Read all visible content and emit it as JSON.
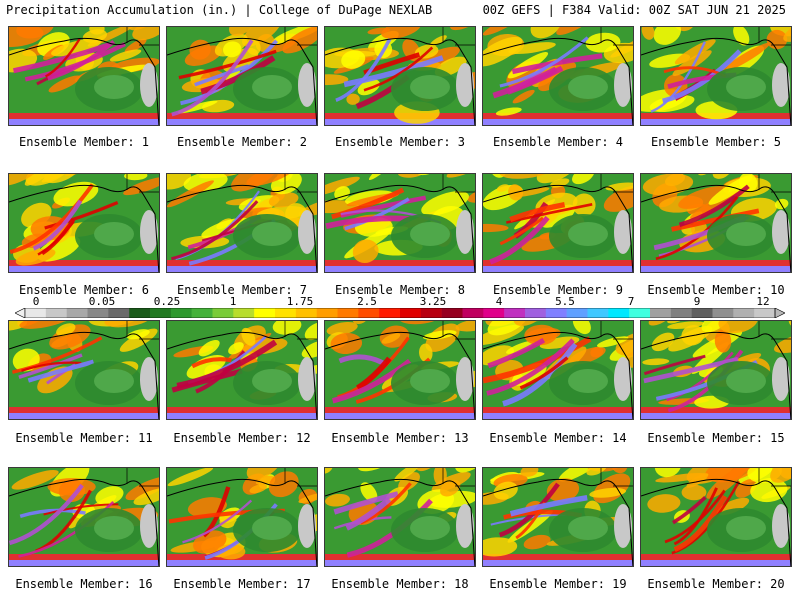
{
  "header": {
    "title_left": "Precipitation Accumulation (in.) | College of DuPage NEXLAB",
    "title_right": "00Z GEFS | F384 Valid: 00Z SAT JUN 21 2025"
  },
  "colorbar": {
    "labels": [
      "0",
      "0.05",
      "0.25",
      "1",
      "1.75",
      "2.5",
      "3.25",
      "4",
      "5.5",
      "7",
      "9",
      "12"
    ],
    "colors": [
      "#e8e8e8",
      "#c8c8c8",
      "#a8a8a8",
      "#888888",
      "#6a6a6a",
      "#1a5a1a",
      "#227a22",
      "#2e992e",
      "#45b23a",
      "#7acc38",
      "#b8dd2c",
      "#ffff00",
      "#ffe100",
      "#ffc000",
      "#ff9d00",
      "#ff7a00",
      "#ff4d00",
      "#ff1a00",
      "#e00000",
      "#b80010",
      "#960020",
      "#c00060",
      "#e0008a",
      "#c030c0",
      "#a060e0",
      "#8080ff",
      "#60a0ff",
      "#40c8ff",
      "#00e8ff",
      "#40ffe0",
      "#a0a0a0",
      "#808080",
      "#606060",
      "#909090",
      "#b0b0b0",
      "#c8c8c8"
    ]
  },
  "members": [
    {
      "label": "Ensemble Member: 1"
    },
    {
      "label": "Ensemble Member: 2"
    },
    {
      "label": "Ensemble Member: 3"
    },
    {
      "label": "Ensemble Member: 4"
    },
    {
      "label": "Ensemble Member: 5"
    },
    {
      "label": "Ensemble Member: 6"
    },
    {
      "label": "Ensemble Member: 7"
    },
    {
      "label": "Ensemble Member: 8"
    },
    {
      "label": "Ensemble Member: 9"
    },
    {
      "label": "Ensemble Member: 10"
    },
    {
      "label": "Ensemble Member: 11"
    },
    {
      "label": "Ensemble Member: 12"
    },
    {
      "label": "Ensemble Member: 13"
    },
    {
      "label": "Ensemble Member: 14"
    },
    {
      "label": "Ensemble Member: 15"
    },
    {
      "label": "Ensemble Member: 16"
    },
    {
      "label": "Ensemble Member: 17"
    },
    {
      "label": "Ensemble Member: 18"
    },
    {
      "label": "Ensemble Member: 19"
    },
    {
      "label": "Ensemble Member: 20"
    }
  ]
}
